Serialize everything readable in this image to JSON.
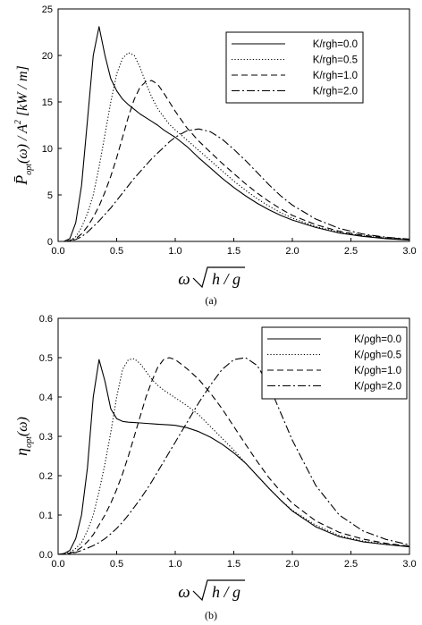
{
  "chart_data": [
    {
      "type": "line",
      "caption": "(a)",
      "ylabel": {
        "main": "P̄",
        "sub": "opt",
        "rest": "(ω) / A",
        "sup": "2",
        "unit": "[kW / m]"
      },
      "xlabel": {
        "prefix": "ω",
        "radicand": "h / g"
      },
      "xlim": [
        0.0,
        3.0
      ],
      "ylim": [
        0,
        25
      ],
      "xticks": [
        "0.0",
        "0.5",
        "1.0",
        "1.5",
        "2.0",
        "2.5",
        "3.0"
      ],
      "yticks": [
        "0",
        "5",
        "10",
        "15",
        "20",
        "25"
      ],
      "grid": false,
      "legend_position": "top-right",
      "x": [
        0.0,
        0.05,
        0.1,
        0.15,
        0.2,
        0.25,
        0.3,
        0.35,
        0.4,
        0.45,
        0.5,
        0.55,
        0.6,
        0.65,
        0.7,
        0.75,
        0.8,
        0.85,
        0.9,
        0.95,
        1.0,
        1.1,
        1.2,
        1.3,
        1.4,
        1.5,
        1.6,
        1.7,
        1.8,
        1.9,
        2.0,
        2.2,
        2.4,
        2.6,
        2.8,
        3.0
      ],
      "series": [
        {
          "name": "K/rgh=0.0",
          "dash": "solid",
          "values": [
            0,
            0,
            0.3,
            2.0,
            6.0,
            13.0,
            20.0,
            23.1,
            20.0,
            17.5,
            16.2,
            15.3,
            14.7,
            14.2,
            13.7,
            13.3,
            12.9,
            12.5,
            12.0,
            11.6,
            11.2,
            10.2,
            9.0,
            7.9,
            6.8,
            5.8,
            4.9,
            4.1,
            3.4,
            2.8,
            2.3,
            1.5,
            0.9,
            0.55,
            0.3,
            0.15
          ]
        },
        {
          "name": "K/rgh=0.5",
          "dash": "dotted",
          "values": [
            0,
            0,
            0.1,
            0.5,
            1.5,
            3.0,
            5.0,
            8.0,
            11.5,
            15.0,
            18.0,
            19.7,
            20.3,
            20.0,
            18.7,
            17.0,
            15.5,
            14.3,
            13.4,
            12.6,
            12.0,
            10.9,
            9.8,
            8.7,
            7.6,
            6.5,
            5.5,
            4.6,
            3.8,
            3.1,
            2.5,
            1.6,
            1.0,
            0.6,
            0.35,
            0.2
          ]
        },
        {
          "name": "K/rgh=1.0",
          "dash": "dashed",
          "values": [
            0,
            0,
            0.1,
            0.3,
            0.8,
            1.6,
            2.6,
            3.8,
            5.3,
            7.0,
            9.0,
            11.2,
            13.4,
            15.3,
            16.6,
            17.2,
            17.3,
            16.9,
            16.0,
            15.0,
            14.0,
            12.2,
            10.8,
            9.6,
            8.4,
            7.3,
            6.2,
            5.2,
            4.3,
            3.5,
            2.8,
            1.8,
            1.1,
            0.65,
            0.4,
            0.22
          ]
        },
        {
          "name": "K/rgh=2.0",
          "dash": "dashdot",
          "values": [
            0,
            0,
            0.05,
            0.2,
            0.5,
            1.0,
            1.6,
            2.2,
            2.9,
            3.6,
            4.4,
            5.2,
            6.0,
            6.8,
            7.5,
            8.2,
            8.9,
            9.5,
            10.1,
            10.7,
            11.2,
            11.9,
            12.1,
            11.8,
            11.0,
            9.9,
            8.7,
            7.4,
            6.1,
            4.9,
            3.9,
            2.4,
            1.4,
            0.8,
            0.45,
            0.25
          ]
        }
      ]
    },
    {
      "type": "line",
      "caption": "(b)",
      "ylabel": {
        "main": "η",
        "sub": "opt",
        "rest": "(ω)"
      },
      "xlabel": {
        "prefix": "ω",
        "radicand": "h / g"
      },
      "xlim": [
        0.0,
        3.0
      ],
      "ylim": [
        0.0,
        0.6
      ],
      "xticks": [
        "0.0",
        "0.5",
        "1.0",
        "1.5",
        "2.0",
        "2.5",
        "3.0"
      ],
      "yticks": [
        "0.0",
        "0.1",
        "0.2",
        "0.3",
        "0.4",
        "0.5",
        "0.6"
      ],
      "grid": false,
      "legend_position": "top-right",
      "x": [
        0.0,
        0.05,
        0.1,
        0.15,
        0.2,
        0.25,
        0.3,
        0.35,
        0.4,
        0.45,
        0.5,
        0.55,
        0.6,
        0.65,
        0.7,
        0.75,
        0.8,
        0.85,
        0.9,
        0.95,
        1.0,
        1.1,
        1.2,
        1.3,
        1.4,
        1.5,
        1.6,
        1.7,
        1.8,
        1.9,
        2.0,
        2.2,
        2.4,
        2.6,
        2.8,
        3.0
      ],
      "series": [
        {
          "name": "K/ρgh=0.0",
          "dash": "solid",
          "values": [
            0,
            0.002,
            0.01,
            0.04,
            0.1,
            0.22,
            0.4,
            0.495,
            0.44,
            0.37,
            0.345,
            0.338,
            0.336,
            0.335,
            0.334,
            0.333,
            0.332,
            0.331,
            0.33,
            0.329,
            0.328,
            0.322,
            0.312,
            0.298,
            0.28,
            0.258,
            0.232,
            0.2,
            0.168,
            0.138,
            0.11,
            0.07,
            0.045,
            0.032,
            0.025,
            0.019
          ]
        },
        {
          "name": "K/ρgh=0.5",
          "dash": "dotted",
          "values": [
            0,
            0.001,
            0.005,
            0.015,
            0.03,
            0.06,
            0.1,
            0.16,
            0.23,
            0.31,
            0.4,
            0.47,
            0.495,
            0.497,
            0.485,
            0.465,
            0.445,
            0.43,
            0.418,
            0.408,
            0.398,
            0.378,
            0.355,
            0.325,
            0.295,
            0.265,
            0.232,
            0.2,
            0.168,
            0.138,
            0.112,
            0.074,
            0.048,
            0.034,
            0.026,
            0.02
          ]
        },
        {
          "name": "K/ρgh=1.0",
          "dash": "dashed",
          "values": [
            0,
            0.001,
            0.003,
            0.008,
            0.018,
            0.032,
            0.05,
            0.075,
            0.1,
            0.13,
            0.165,
            0.205,
            0.25,
            0.3,
            0.35,
            0.4,
            0.44,
            0.475,
            0.495,
            0.5,
            0.495,
            0.472,
            0.445,
            0.41,
            0.37,
            0.325,
            0.28,
            0.236,
            0.195,
            0.16,
            0.13,
            0.085,
            0.056,
            0.039,
            0.028,
            0.021
          ]
        },
        {
          "name": "K/ρgh=2.0",
          "dash": "dashdot",
          "values": [
            0,
            0.0,
            0.002,
            0.005,
            0.01,
            0.016,
            0.022,
            0.03,
            0.04,
            0.052,
            0.066,
            0.082,
            0.1,
            0.12,
            0.14,
            0.162,
            0.185,
            0.21,
            0.235,
            0.26,
            0.285,
            0.335,
            0.385,
            0.43,
            0.47,
            0.495,
            0.5,
            0.48,
            0.43,
            0.36,
            0.29,
            0.175,
            0.1,
            0.06,
            0.038,
            0.024
          ]
        }
      ]
    }
  ]
}
